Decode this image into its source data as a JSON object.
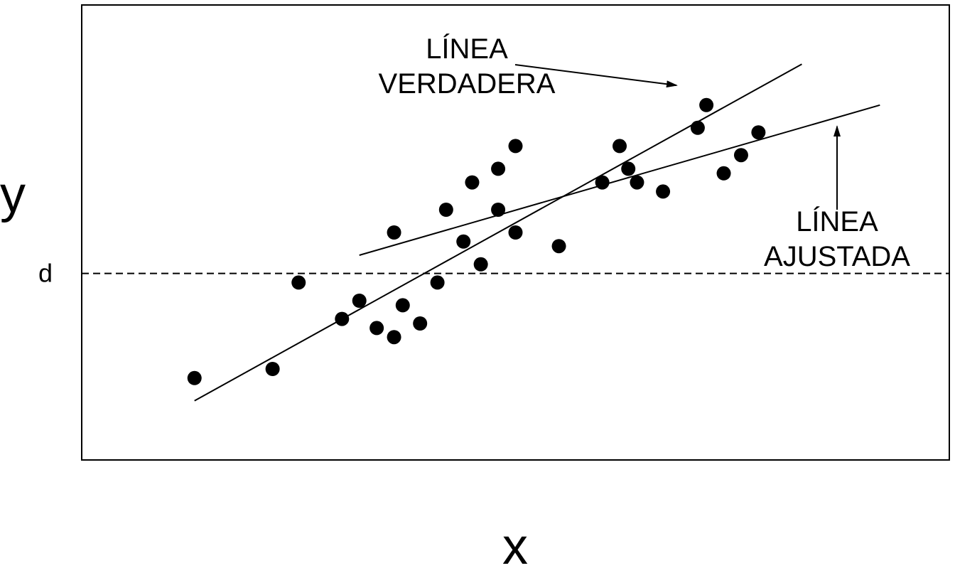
{
  "chart_data": {
    "type": "scatter",
    "title": "",
    "xlabel": "x",
    "ylabel": "y",
    "xlim": [
      0,
      100
    ],
    "ylim": [
      0,
      100
    ],
    "grid": false,
    "points": [
      {
        "x": 13,
        "y": 18
      },
      {
        "x": 22,
        "y": 20
      },
      {
        "x": 25,
        "y": 39
      },
      {
        "x": 30,
        "y": 31
      },
      {
        "x": 32,
        "y": 35
      },
      {
        "x": 34,
        "y": 29
      },
      {
        "x": 36,
        "y": 27
      },
      {
        "x": 36,
        "y": 50
      },
      {
        "x": 37,
        "y": 34
      },
      {
        "x": 39,
        "y": 30
      },
      {
        "x": 41,
        "y": 39
      },
      {
        "x": 42,
        "y": 55
      },
      {
        "x": 44,
        "y": 48
      },
      {
        "x": 45,
        "y": 61
      },
      {
        "x": 46,
        "y": 43
      },
      {
        "x": 48,
        "y": 64
      },
      {
        "x": 48,
        "y": 55
      },
      {
        "x": 50,
        "y": 50
      },
      {
        "x": 50,
        "y": 69
      },
      {
        "x": 55,
        "y": 47
      },
      {
        "x": 60,
        "y": 61
      },
      {
        "x": 62,
        "y": 69
      },
      {
        "x": 63,
        "y": 64
      },
      {
        "x": 64,
        "y": 61
      },
      {
        "x": 67,
        "y": 59
      },
      {
        "x": 71,
        "y": 73
      },
      {
        "x": 72,
        "y": 78
      },
      {
        "x": 74,
        "y": 63
      },
      {
        "x": 76,
        "y": 67
      },
      {
        "x": 78,
        "y": 72
      }
    ],
    "lines": [
      {
        "name": "LÍNEA VERDADERA",
        "x1": 13,
        "y1": 13,
        "x2": 83,
        "y2": 87
      },
      {
        "name": "LÍNEA AJUSTADA",
        "x1": 32,
        "y1": 45,
        "x2": 92,
        "y2": 78
      }
    ],
    "reference_line": {
      "label": "d",
      "y": 41,
      "style": "dashed"
    },
    "annotations": [
      {
        "line1": "LÍNEA",
        "line2": "VERDADERA",
        "target": "true_line"
      },
      {
        "line1": "LÍNEA",
        "line2": "AJUSTADA",
        "target": "fitted_line"
      }
    ]
  }
}
